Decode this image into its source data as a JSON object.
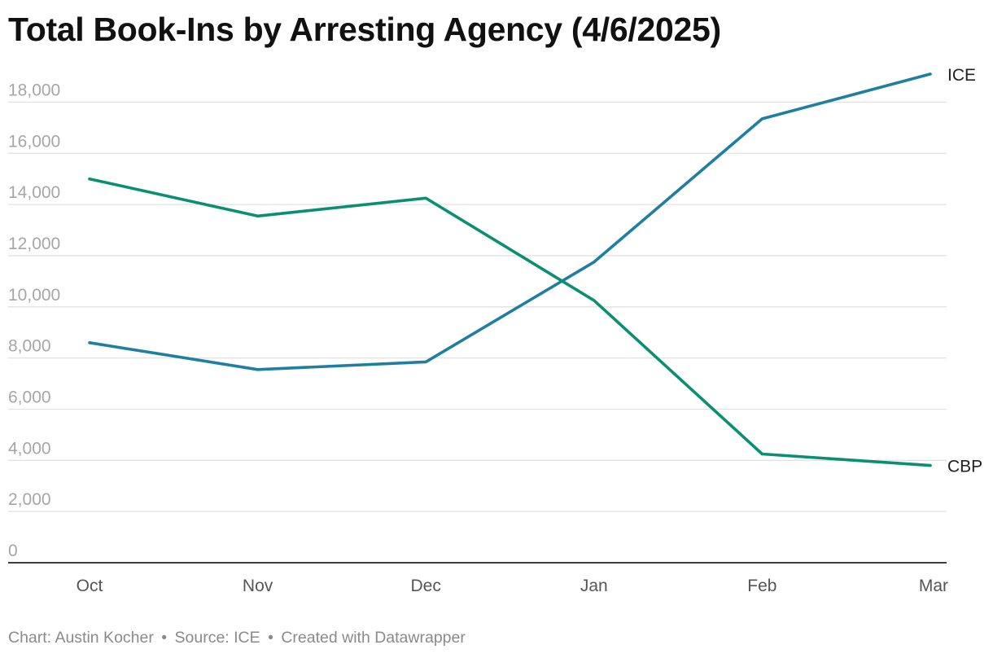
{
  "header": {
    "title": "Total Book-Ins by Arresting Agency (4/6/2025)"
  },
  "footer": {
    "credit": "Chart: Austin Kocher",
    "source": "Source: ICE",
    "tool": "Created with Datawrapper",
    "separator": "•"
  },
  "colors": {
    "ICE": "#1f7fa0",
    "CBP": "#0b8f72",
    "gridline": "#e2e2e2",
    "axis": "#222222",
    "tick_label": "#a6a6a6",
    "x_tick_label": "#555555"
  },
  "chart_data": {
    "type": "line",
    "title": "Total Book-Ins by Arresting Agency (4/6/2025)",
    "xlabel": "",
    "ylabel": "",
    "categories": [
      "Oct",
      "Nov",
      "Dec",
      "Jan",
      "Feb",
      "Mar"
    ],
    "y_ticks": [
      0,
      2000,
      4000,
      6000,
      8000,
      10000,
      12000,
      14000,
      16000,
      18000
    ],
    "y_tick_labels": [
      "0",
      "2,000",
      "4,000",
      "6,000",
      "8,000",
      "10,000",
      "12,000",
      "14,000",
      "16,000",
      "18,000"
    ],
    "ylim": [
      0,
      19000
    ],
    "grid": true,
    "legend": "direct labels at line ends",
    "series": [
      {
        "name": "ICE",
        "values": [
          8600,
          7550,
          7850,
          11750,
          17350,
          19100
        ]
      },
      {
        "name": "CBP",
        "values": [
          15000,
          13550,
          14250,
          10250,
          4250,
          3800
        ]
      }
    ]
  }
}
